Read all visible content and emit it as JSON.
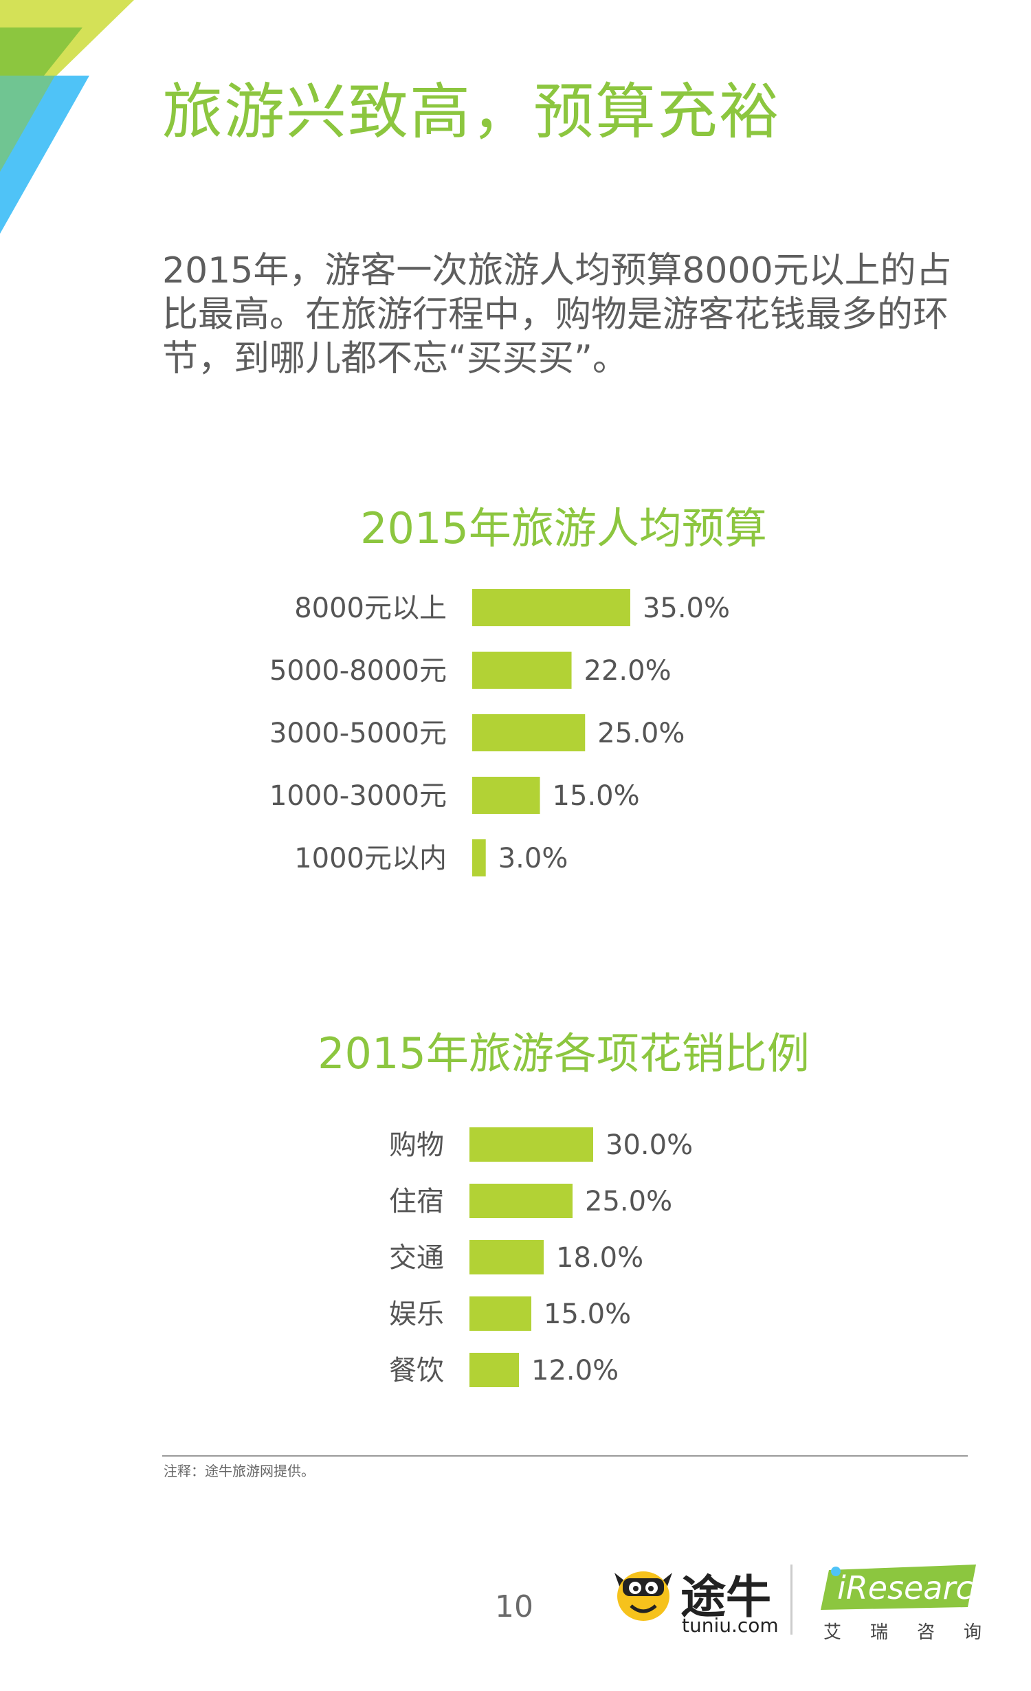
{
  "page": {
    "title": "旅游兴致高，预算充裕",
    "intro": "2015年，游客一次旅游人均预算8000元以上的占比最高。在旅游行程中，购物是游客花钱最多的环节，到哪儿都不忘“买买买”。",
    "footnote": "注释：途牛旅游网提供。",
    "page_number": "10",
    "accent_color": "#8cc63f",
    "bar_color": "#b2d235"
  },
  "logos": {
    "tuniu_name": "途牛",
    "tuniu_domain": "tuniu.com",
    "iresearch_word": "iResearch",
    "iresearch_cn": [
      "艾",
      "瑞",
      "咨",
      "询"
    ]
  },
  "chart_data": [
    {
      "type": "bar",
      "orientation": "horizontal",
      "title": "2015年旅游人均预算",
      "categories": [
        "8000元以上",
        "5000-8000元",
        "3000-5000元",
        "1000-3000元",
        "1000元以内"
      ],
      "values": [
        35.0,
        22.0,
        25.0,
        15.0,
        3.0
      ],
      "value_labels": [
        "35.0%",
        "22.0%",
        "25.0%",
        "15.0%",
        "3.0%"
      ],
      "xlim": [
        0,
        100
      ],
      "grid": false,
      "legend": "none"
    },
    {
      "type": "bar",
      "orientation": "horizontal",
      "title": "2015年旅游各项花销比例",
      "categories": [
        "购物",
        "住宿",
        "交通",
        "娱乐",
        "餐饮"
      ],
      "values": [
        30.0,
        25.0,
        18.0,
        15.0,
        12.0
      ],
      "value_labels": [
        "30.0%",
        "25.0%",
        "18.0%",
        "15.0%",
        "12.0%"
      ],
      "xlim": [
        0,
        100
      ],
      "grid": false,
      "legend": "none"
    }
  ]
}
